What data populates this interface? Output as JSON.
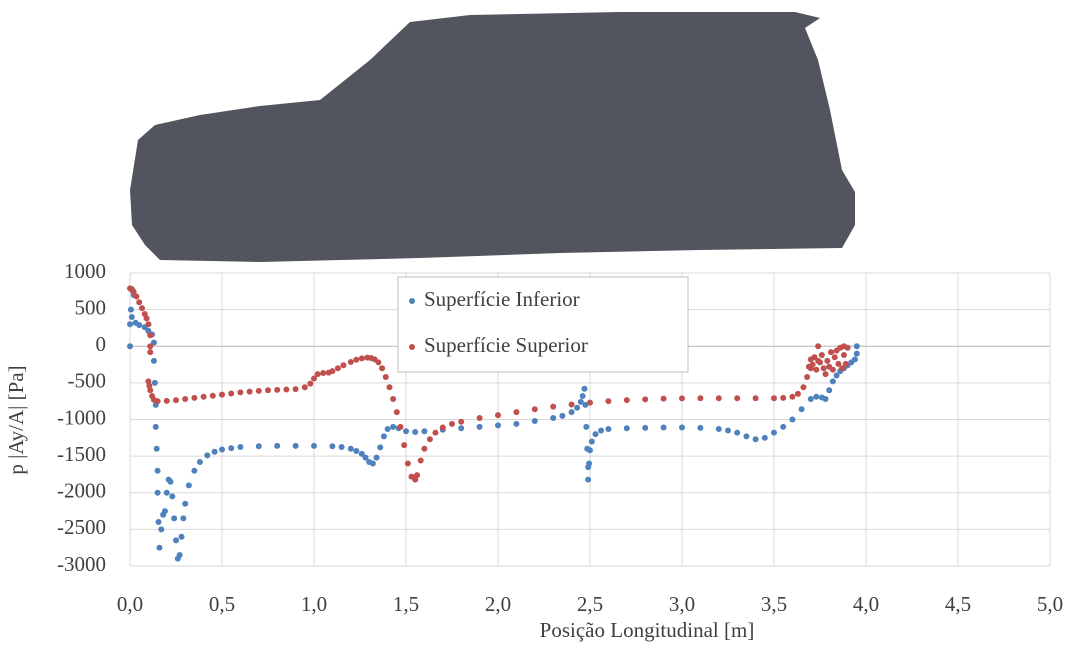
{
  "chart_data": {
    "type": "scatter",
    "xlabel": "Posição Longitudinal [m]",
    "ylabel": "p |Ay/A| [Pa]",
    "xlim": [
      0,
      5
    ],
    "ylim": [
      -3000,
      1000
    ],
    "xticks": [
      {
        "value": 0,
        "label": "0,0"
      },
      {
        "value": 0.5,
        "label": "0,5"
      },
      {
        "value": 1,
        "label": "1,0"
      },
      {
        "value": 1.5,
        "label": "1,5"
      },
      {
        "value": 2,
        "label": "2,0"
      },
      {
        "value": 2.5,
        "label": "2,5"
      },
      {
        "value": 3,
        "label": "3,0"
      },
      {
        "value": 3.5,
        "label": "3,5"
      },
      {
        "value": 4,
        "label": "4,0"
      },
      {
        "value": 4.5,
        "label": "4,5"
      },
      {
        "value": 5,
        "label": "5,0"
      }
    ],
    "yticks": [
      1000,
      500,
      0,
      -500,
      -1000,
      -1500,
      -2000,
      -2500,
      -3000
    ],
    "grid": true,
    "legend": "top",
    "series": [
      {
        "name": "Superfície Inferior",
        "color": "#4f81bd",
        "x": [
          0,
          0,
          0.005,
          0.01,
          0.015,
          0.02,
          0.01,
          0.03,
          0.05,
          0.08,
          0.1,
          0.12,
          0.13,
          0.13,
          0.135,
          0.14,
          0.14,
          0.145,
          0.15,
          0.15,
          0.155,
          0.16,
          0.17,
          0.18,
          0.19,
          0.2,
          0.21,
          0.22,
          0.23,
          0.24,
          0.25,
          0.26,
          0.27,
          0.28,
          0.29,
          0.3,
          0.32,
          0.35,
          0.38,
          0.42,
          0.46,
          0.5,
          0.55,
          0.6,
          0.7,
          0.8,
          0.9,
          1.0,
          1.1,
          1.15,
          1.2,
          1.23,
          1.26,
          1.28,
          1.3,
          1.32,
          1.34,
          1.36,
          1.38,
          1.4,
          1.43,
          1.46,
          1.5,
          1.55,
          1.6,
          1.7,
          1.8,
          1.9,
          2.0,
          2.1,
          2.2,
          2.3,
          2.35,
          2.4,
          2.43,
          2.45,
          2.46,
          2.47,
          2.475,
          2.48,
          2.485,
          2.49,
          2.49,
          2.495,
          2.5,
          2.51,
          2.53,
          2.56,
          2.6,
          2.7,
          2.8,
          2.9,
          3.0,
          3.1,
          3.2,
          3.25,
          3.3,
          3.35,
          3.4,
          3.45,
          3.5,
          3.55,
          3.6,
          3.65,
          3.7,
          3.73,
          3.76,
          3.78,
          3.8,
          3.82,
          3.84,
          3.86,
          3.88,
          3.9,
          3.92,
          3.94,
          3.95,
          3.95
        ],
        "values": [
          0,
          300,
          500,
          780,
          760,
          700,
          400,
          320,
          290,
          260,
          210,
          160,
          50,
          -200,
          -500,
          -800,
          -1100,
          -1400,
          -1700,
          -2000,
          -2400,
          -2750,
          -2500,
          -2300,
          -2250,
          -2000,
          -1820,
          -1850,
          -2050,
          -2350,
          -2650,
          -2900,
          -2850,
          -2600,
          -2350,
          -2150,
          -1900,
          -1700,
          -1580,
          -1490,
          -1440,
          -1410,
          -1390,
          -1375,
          -1365,
          -1360,
          -1360,
          -1360,
          -1365,
          -1375,
          -1400,
          -1430,
          -1470,
          -1520,
          -1580,
          -1600,
          -1520,
          -1380,
          -1230,
          -1130,
          -1100,
          -1120,
          -1160,
          -1170,
          -1160,
          -1140,
          -1120,
          -1100,
          -1080,
          -1060,
          -1020,
          -980,
          -950,
          -900,
          -840,
          -760,
          -680,
          -580,
          -800,
          -1100,
          -1400,
          -1650,
          -1820,
          -1600,
          -1420,
          -1300,
          -1200,
          -1150,
          -1130,
          -1120,
          -1115,
          -1110,
          -1110,
          -1115,
          -1130,
          -1150,
          -1180,
          -1230,
          -1270,
          -1250,
          -1180,
          -1100,
          -1000,
          -860,
          -720,
          -690,
          -700,
          -720,
          -600,
          -480,
          -400,
          -340,
          -300,
          -260,
          -220,
          -180,
          -100,
          0
        ]
      },
      {
        "name": "Superfície Superior",
        "color": "#c0504d",
        "x": [
          0,
          0.01,
          0.02,
          0.035,
          0.05,
          0.065,
          0.08,
          0.09,
          0.1,
          0.11,
          0.11,
          0.11,
          0.1,
          0.105,
          0.11,
          0.12,
          0.13,
          0.15,
          0.2,
          0.25,
          0.3,
          0.35,
          0.4,
          0.45,
          0.5,
          0.55,
          0.6,
          0.65,
          0.7,
          0.75,
          0.8,
          0.85,
          0.9,
          0.95,
          0.98,
          1.0,
          1.02,
          1.05,
          1.08,
          1.1,
          1.13,
          1.16,
          1.2,
          1.23,
          1.26,
          1.29,
          1.31,
          1.33,
          1.35,
          1.37,
          1.39,
          1.41,
          1.43,
          1.45,
          1.47,
          1.49,
          1.51,
          1.53,
          1.55,
          1.56,
          1.58,
          1.6,
          1.63,
          1.66,
          1.7,
          1.75,
          1.8,
          1.9,
          2.0,
          2.1,
          2.2,
          2.3,
          2.4,
          2.5,
          2.6,
          2.7,
          2.8,
          2.9,
          3.0,
          3.1,
          3.2,
          3.3,
          3.4,
          3.5,
          3.55,
          3.6,
          3.63,
          3.66,
          3.68,
          3.69,
          3.7,
          3.7,
          3.71,
          3.72,
          3.73,
          3.74,
          3.74,
          3.75,
          3.76,
          3.77,
          3.78,
          3.79,
          3.8,
          3.81,
          3.82,
          3.83,
          3.84,
          3.85,
          3.86,
          3.87,
          3.88,
          3.88,
          3.89,
          3.9
        ],
        "values": [
          790,
          770,
          740,
          680,
          600,
          520,
          440,
          380,
          300,
          150,
          0,
          -80,
          -480,
          -540,
          -600,
          -680,
          -730,
          -750,
          -745,
          -735,
          -720,
          -705,
          -690,
          -675,
          -660,
          -645,
          -630,
          -620,
          -610,
          -600,
          -595,
          -590,
          -585,
          -560,
          -510,
          -440,
          -380,
          -365,
          -360,
          -340,
          -300,
          -260,
          -215,
          -185,
          -165,
          -155,
          -160,
          -180,
          -220,
          -300,
          -420,
          -560,
          -720,
          -900,
          -1100,
          -1350,
          -1600,
          -1780,
          -1820,
          -1760,
          -1560,
          -1400,
          -1270,
          -1180,
          -1110,
          -1060,
          -1030,
          -980,
          -940,
          -900,
          -860,
          -825,
          -795,
          -770,
          -750,
          -735,
          -725,
          -715,
          -712,
          -710,
          -710,
          -710,
          -710,
          -710,
          -705,
          -690,
          -650,
          -560,
          -420,
          -280,
          -180,
          -300,
          -250,
          -150,
          -320,
          -200,
          0,
          -220,
          -120,
          -300,
          -380,
          -200,
          -280,
          -80,
          -320,
          -150,
          -60,
          -240,
          -20,
          -300,
          0,
          -120,
          -240,
          -20
        ]
      }
    ]
  }
}
